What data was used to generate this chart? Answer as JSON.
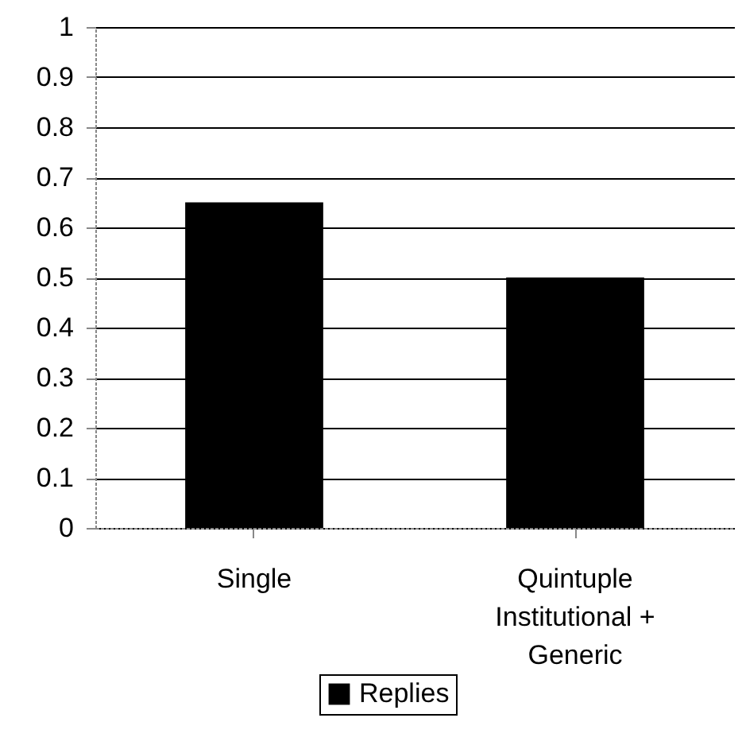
{
  "chart_data": {
    "type": "bar",
    "categories": [
      "Single",
      "Quintuple Institutional + Generic"
    ],
    "series": [
      {
        "name": "Replies",
        "color": "#000000",
        "values": [
          0.65,
          0.5
        ]
      }
    ],
    "ylim": [
      0,
      1
    ],
    "yticks": [
      0,
      0.1,
      0.2,
      0.3,
      0.4,
      0.5,
      0.6,
      0.7,
      0.8,
      0.9,
      1
    ],
    "grid": "y",
    "legend": "bottom"
  }
}
